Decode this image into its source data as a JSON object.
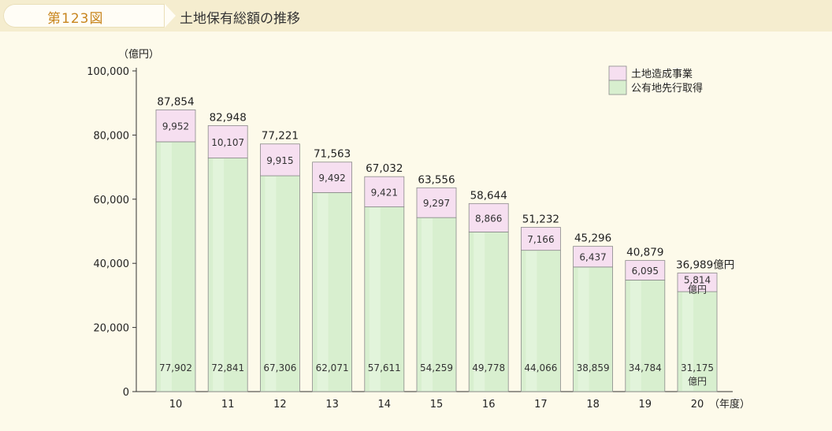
{
  "header": {
    "figure_number": "第123図",
    "title": "土地保有総額の推移"
  },
  "chart_data": {
    "type": "bar",
    "stacked": true,
    "categories": [
      "10",
      "11",
      "12",
      "13",
      "14",
      "15",
      "16",
      "17",
      "18",
      "19",
      "20"
    ],
    "series": [
      {
        "name": "公有地先行取得",
        "color": "#d8efcf",
        "values": [
          77902,
          72841,
          67306,
          62071,
          57611,
          54259,
          49778,
          44066,
          38859,
          34784,
          31175
        ]
      },
      {
        "name": "土地造成事業",
        "color": "#f6dff0",
        "values": [
          9952,
          10107,
          9915,
          9492,
          9421,
          9297,
          8866,
          7166,
          6437,
          6095,
          5814
        ]
      }
    ],
    "totals": [
      87854,
      82948,
      77221,
      71563,
      67032,
      63556,
      58644,
      51232,
      45296,
      40879,
      36989
    ],
    "value_labels": {
      "totals": [
        "87,854",
        "82,948",
        "77,221",
        "71,563",
        "67,032",
        "63,556",
        "58,644",
        "51,232",
        "45,296",
        "40,879",
        "36,989億円"
      ],
      "upper": [
        "9,952",
        "10,107",
        "9,915",
        "9,492",
        "9,421",
        "9,297",
        "8,866",
        "7,166",
        "6,437",
        "6,095",
        "5,814"
      ],
      "lower": [
        "77,902",
        "72,841",
        "67,306",
        "62,071",
        "57,611",
        "54,259",
        "49,778",
        "44,066",
        "38,859",
        "34,784",
        "31,175"
      ]
    },
    "last_bar_unit_label": "億円",
    "yticks": [
      "0",
      "20,000",
      "40,000",
      "60,000",
      "80,000",
      "100,000"
    ],
    "ylabel": "（億円）",
    "xlabel": "（年度）",
    "ylim": [
      0,
      100000
    ],
    "legend": {
      "position": "top-right",
      "items": [
        "土地造成事業",
        "公有地先行取得"
      ]
    }
  }
}
